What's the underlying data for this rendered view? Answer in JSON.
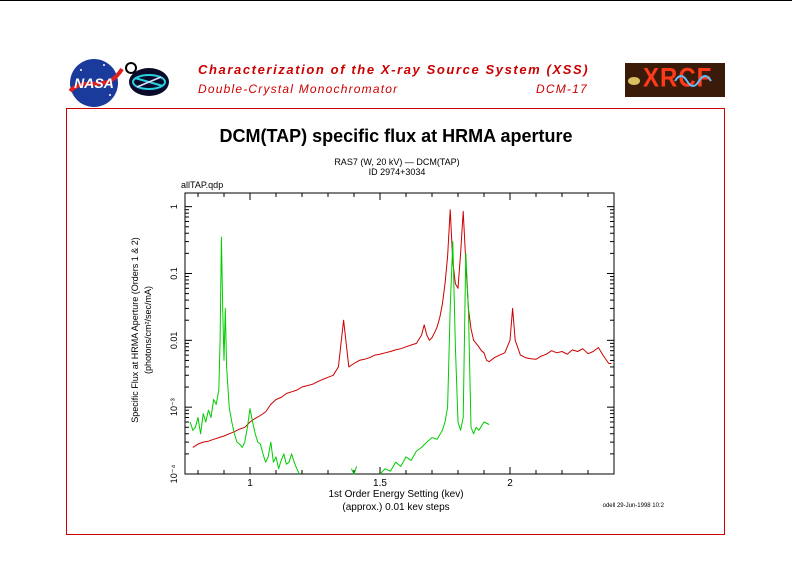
{
  "header": {
    "title": "Characterization of the X-ray Source System (XSS)",
    "subtitle": "Double-Crystal Monochromator",
    "code": "DCM-17",
    "logos": {
      "left1": "NASA",
      "right": "XRCF"
    }
  },
  "colors": {
    "accent": "#cc0000",
    "series_red": "#cc0000",
    "series_green": "#00cc00"
  },
  "chart_data": {
    "type": "line",
    "title": "DCM(TAP) specific flux at HRMA aperture",
    "subtitle_lines": [
      "RAS7 (W, 20 kV) — DCM(TAP)",
      "ID 2974+3034"
    ],
    "file_label": "allTAP.qdp",
    "xlabel": "1st Order Energy Setting (kev)",
    "xlabel2": "(approx.) 0.01 kev steps",
    "ylabel_lines": [
      "Specific Flux at HRMA Aperture (Orders 1 & 2)",
      "(photons/cm²/sec/mA)"
    ],
    "footer_note": "odell 29-Jun-1998 10:2",
    "xlim": [
      0.75,
      2.4
    ],
    "ylim": [
      0.0001,
      1.6
    ],
    "yscale": "log",
    "xticks": [
      {
        "v": 1,
        "label": "1"
      },
      {
        "v": 1.5,
        "label": "1.5"
      },
      {
        "v": 2,
        "label": "2"
      }
    ],
    "yticks": [
      {
        "v": 0.0001,
        "label": "10⁻⁴"
      },
      {
        "v": 0.001,
        "label": "10⁻³"
      },
      {
        "v": 0.01,
        "label": "0.01"
      },
      {
        "v": 0.1,
        "label": "0.1"
      },
      {
        "v": 1,
        "label": "1"
      }
    ],
    "series": [
      {
        "color": "#cc0000",
        "x": [
          0.78,
          0.8,
          0.82,
          0.84,
          0.86,
          0.88,
          0.9,
          0.92,
          0.94,
          0.96,
          0.98,
          1.0,
          1.02,
          1.04,
          1.06,
          1.08,
          1.1,
          1.12,
          1.14,
          1.16,
          1.18,
          1.2,
          1.22,
          1.24,
          1.26,
          1.28,
          1.3,
          1.32,
          1.34,
          1.35,
          1.36,
          1.37,
          1.38,
          1.4,
          1.42,
          1.44,
          1.46,
          1.48,
          1.5,
          1.52,
          1.54,
          1.56,
          1.58,
          1.6,
          1.62,
          1.64,
          1.66,
          1.67,
          1.68,
          1.69,
          1.7,
          1.71,
          1.72,
          1.73,
          1.74,
          1.75,
          1.76,
          1.77,
          1.78,
          1.79,
          1.8,
          1.81,
          1.82,
          1.83,
          1.84,
          1.85,
          1.86,
          1.87,
          1.88,
          1.89,
          1.9,
          1.91,
          1.92,
          1.94,
          1.96,
          1.98,
          2.0,
          2.01,
          2.02,
          2.04,
          2.06,
          2.08,
          2.1,
          2.12,
          2.14,
          2.16,
          2.18,
          2.2,
          2.22,
          2.24,
          2.26,
          2.28,
          2.3,
          2.32,
          2.34,
          2.36,
          2.38,
          2.39
        ],
        "y": [
          0.00025,
          0.00028,
          0.0003,
          0.00031,
          0.00033,
          0.00035,
          0.00037,
          0.0004,
          0.00043,
          0.00047,
          0.0005,
          0.0006,
          0.00068,
          0.00075,
          0.00085,
          0.0011,
          0.0013,
          0.0014,
          0.0016,
          0.0017,
          0.0018,
          0.002,
          0.0021,
          0.0022,
          0.0024,
          0.0026,
          0.0028,
          0.003,
          0.004,
          0.009,
          0.02,
          0.009,
          0.004,
          0.0045,
          0.005,
          0.0052,
          0.0055,
          0.006,
          0.0062,
          0.0065,
          0.0068,
          0.0072,
          0.0075,
          0.008,
          0.0085,
          0.009,
          0.012,
          0.017,
          0.012,
          0.01,
          0.011,
          0.013,
          0.016,
          0.022,
          0.035,
          0.07,
          0.18,
          0.9,
          0.15,
          0.07,
          0.06,
          0.2,
          0.85,
          0.15,
          0.03,
          0.015,
          0.01,
          0.009,
          0.008,
          0.007,
          0.0065,
          0.005,
          0.0048,
          0.0055,
          0.006,
          0.0065,
          0.01,
          0.03,
          0.01,
          0.006,
          0.0055,
          0.0053,
          0.0052,
          0.0058,
          0.0062,
          0.007,
          0.0065,
          0.0068,
          0.0062,
          0.0072,
          0.0068,
          0.0075,
          0.0063,
          0.0068,
          0.0078,
          0.0058,
          0.0045,
          0.0045
        ]
      },
      {
        "color": "#00cc00",
        "segments": [
          {
            "x": [
              0.77,
              0.78,
              0.79,
              0.8,
              0.81,
              0.82,
              0.83,
              0.84,
              0.85,
              0.86,
              0.87,
              0.88,
              0.885,
              0.89,
              0.895,
              0.9,
              0.905,
              0.91,
              0.915,
              0.92,
              0.93,
              0.94,
              0.95,
              0.96,
              0.97,
              0.98,
              0.99,
              1.0,
              1.01,
              1.02,
              1.03,
              1.04,
              1.05,
              1.06,
              1.07,
              1.08,
              1.09,
              1.1,
              1.11,
              1.12,
              1.13,
              1.14,
              1.15,
              1.16,
              1.17,
              1.18,
              1.19
            ],
            "y": [
              0.0006,
              0.00045,
              0.0005,
              0.0007,
              0.0004,
              0.0008,
              0.0006,
              0.0009,
              0.0007,
              0.0013,
              0.0011,
              0.0018,
              0.01,
              0.35,
              0.03,
              0.005,
              0.03,
              0.004,
              0.002,
              0.001,
              0.0006,
              0.0004,
              0.0003,
              0.00028,
              0.00025,
              0.0003,
              0.0005,
              0.00095,
              0.0006,
              0.0004,
              0.0003,
              0.00028,
              0.0002,
              0.00015,
              0.00018,
              0.0003,
              0.00015,
              0.00018,
              0.00012,
              0.00016,
              0.0002,
              0.00014,
              0.00015,
              0.0002,
              0.00015,
              0.00012,
              0.0001
            ]
          },
          {
            "x": [
              1.39,
              1.4,
              1.41
            ],
            "y": [
              0.00012,
              0.0001,
              0.00013
            ]
          },
          {
            "x": [
              1.5,
              1.52,
              1.54,
              1.56,
              1.58,
              1.6,
              1.62,
              1.64,
              1.66,
              1.68,
              1.7,
              1.72,
              1.74,
              1.75,
              1.76,
              1.77,
              1.78,
              1.79,
              1.8,
              1.81,
              1.82,
              1.83,
              1.84,
              1.85,
              1.86,
              1.87,
              1.88,
              1.9,
              1.92
            ],
            "y": [
              0.0001,
              0.00012,
              0.00011,
              0.00015,
              0.00013,
              0.00018,
              0.00016,
              0.00022,
              0.00025,
              0.0003,
              0.00035,
              0.00033,
              0.00045,
              0.0006,
              0.001,
              0.03,
              0.3,
              0.008,
              0.0006,
              0.00045,
              0.0007,
              0.2,
              0.03,
              0.0005,
              0.0004,
              0.0005,
              0.00045,
              0.0006,
              0.00055
            ]
          }
        ]
      }
    ]
  }
}
